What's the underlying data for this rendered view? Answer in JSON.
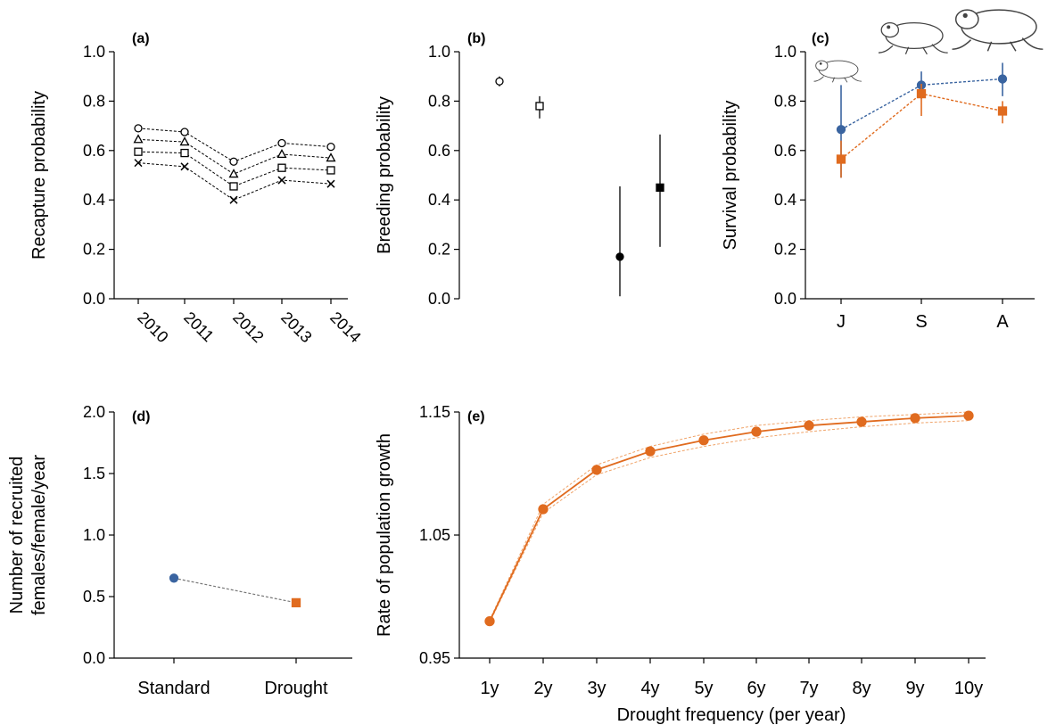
{
  "chart_data": [
    {
      "panel": "a",
      "panel_label": "(a)",
      "type": "line",
      "ylabel": "Recapture probability",
      "xlabel": "",
      "ylim": [
        0,
        1
      ],
      "yticks": [
        "0.0",
        "0.2",
        "0.4",
        "0.6",
        "0.8",
        "1.0"
      ],
      "categories": [
        "2010",
        "2011",
        "2012",
        "2013",
        "2014"
      ],
      "series": [
        {
          "marker": "circle",
          "values": [
            0.69,
            0.675,
            0.555,
            0.63,
            0.615
          ]
        },
        {
          "marker": "triangle",
          "values": [
            0.645,
            0.635,
            0.505,
            0.585,
            0.57
          ]
        },
        {
          "marker": "square",
          "values": [
            0.595,
            0.59,
            0.455,
            0.53,
            0.52
          ]
        },
        {
          "marker": "cross",
          "values": [
            0.55,
            0.535,
            0.4,
            0.48,
            0.465
          ]
        }
      ]
    },
    {
      "panel": "b",
      "panel_label": "(b)",
      "type": "scatter",
      "ylabel": "Breeding probability",
      "xlabel": "",
      "ylim": [
        0,
        1
      ],
      "yticks": [
        "0.0",
        "0.2",
        "0.4",
        "0.6",
        "0.8",
        "1.0"
      ],
      "points": [
        {
          "marker": "circle",
          "fill": "open",
          "y": 0.88,
          "low": 0.86,
          "high": 0.9
        },
        {
          "marker": "square",
          "fill": "open",
          "y": 0.78,
          "low": 0.73,
          "high": 0.82
        },
        {
          "marker": "circle",
          "fill": "filled",
          "y": 0.17,
          "low": 0.01,
          "high": 0.455
        },
        {
          "marker": "square",
          "fill": "filled",
          "y": 0.45,
          "low": 0.21,
          "high": 0.665
        }
      ]
    },
    {
      "panel": "c",
      "panel_label": "(c)",
      "type": "line",
      "ylabel": "Survival probability",
      "xlabel": "",
      "ylim": [
        0,
        1
      ],
      "yticks": [
        "0.0",
        "0.2",
        "0.4",
        "0.6",
        "0.8",
        "1.0"
      ],
      "categories": [
        "J",
        "S",
        "A"
      ],
      "series": [
        {
          "color": "#3a64a0",
          "marker": "circle",
          "values": [
            0.685,
            0.865,
            0.89
          ],
          "low": [
            0.49,
            0.81,
            0.82
          ],
          "high": [
            0.865,
            0.92,
            0.955
          ]
        },
        {
          "color": "#e06b1f",
          "marker": "square",
          "values": [
            0.565,
            0.83,
            0.76
          ],
          "low": [
            0.49,
            0.74,
            0.71
          ],
          "high": [
            0.64,
            0.87,
            0.8
          ]
        }
      ]
    },
    {
      "panel": "d",
      "panel_label": "(d)",
      "type": "scatter",
      "ylabel": "Number of recruited females/female/year",
      "ylabel_lines": [
        "Number of recruited",
        "females/female/year"
      ],
      "xlabel": "",
      "ylim": [
        0,
        2
      ],
      "yticks": [
        "0.0",
        "0.5",
        "1.0",
        "1.5",
        "2.0"
      ],
      "categories": [
        "Standard",
        "Drought"
      ],
      "points": [
        {
          "color": "#3a64a0",
          "marker": "circle",
          "y": 0.65
        },
        {
          "color": "#e06b1f",
          "marker": "square",
          "y": 0.45
        }
      ]
    },
    {
      "panel": "e",
      "panel_label": "(e)",
      "type": "line",
      "ylabel": "Rate of population growth",
      "xlabel": "Drought frequency (per year)",
      "ylim": [
        0.95,
        1.15
      ],
      "yticks": [
        "0.95",
        "1.05",
        "1.15"
      ],
      "categories": [
        "1y",
        "2y",
        "3y",
        "4y",
        "5y",
        "6y",
        "7y",
        "8y",
        "9y",
        "10y"
      ],
      "series": [
        {
          "color": "#e06b1f",
          "marker": "circle",
          "values": [
            0.98,
            1.071,
            1.103,
            1.118,
            1.127,
            1.134,
            1.139,
            1.142,
            1.145,
            1.147
          ],
          "low": [
            0.979,
            1.068,
            1.099,
            1.113,
            1.122,
            1.129,
            1.134,
            1.138,
            1.141,
            1.143
          ],
          "high": [
            0.981,
            1.075,
            1.107,
            1.122,
            1.132,
            1.139,
            1.143,
            1.146,
            1.148,
            1.15
          ]
        }
      ]
    }
  ]
}
